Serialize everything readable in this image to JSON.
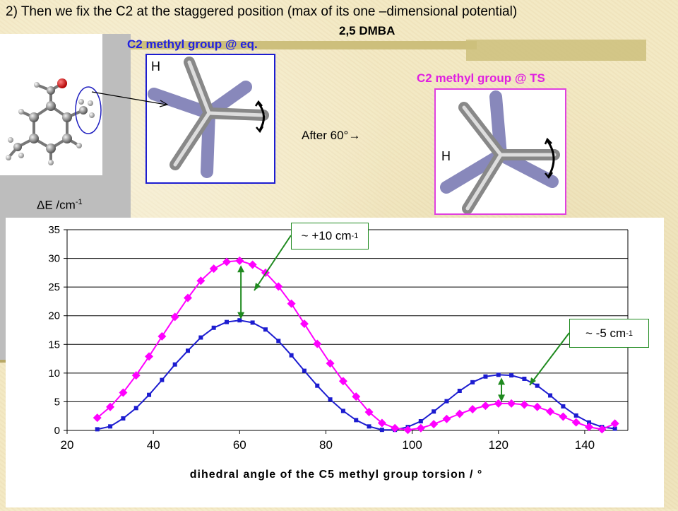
{
  "slide": {
    "title": "2) Then we fix the C2 at the staggered position (max of its one –dimensional potential)",
    "molecule": "2,5 DMBA",
    "eq_label": "C2 methyl group @ eq.",
    "ts_label": "C2 methyl group @ TS",
    "h_label": "H",
    "after_label": "After 60°→",
    "delta_e_label": "ΔE /cm",
    "delta_e_sup": "-1",
    "callout_top": "~ +10 cm",
    "callout_top_sup": "-1",
    "callout_bottom": "~ -5 cm",
    "callout_bottom_sup": "-1",
    "colors": {
      "eq": "#1c1cd0",
      "ts": "#ff00ff",
      "accent": "#1f8a1f",
      "background": "#f3e8c2"
    }
  },
  "chart_data": {
    "type": "line",
    "title": "",
    "xlabel": "dihedral angle of the C5 methyl group torsion / °",
    "ylabel": "ΔE /cm-1",
    "xlim": [
      20,
      150
    ],
    "ylim": [
      0,
      35
    ],
    "xticks": [
      20,
      40,
      60,
      80,
      100,
      120,
      140
    ],
    "yticks": [
      0,
      5,
      10,
      15,
      20,
      25,
      30,
      35
    ],
    "grid": "horizontal",
    "series": [
      {
        "color": "#1c1cd0",
        "marker": "square",
        "x": [
          27,
          30,
          33,
          36,
          39,
          42,
          45,
          48,
          51,
          54,
          57,
          60,
          63,
          66,
          69,
          72,
          75,
          78,
          81,
          84,
          87,
          90,
          93,
          96,
          99,
          102,
          105,
          108,
          111,
          114,
          117,
          120,
          123,
          126,
          129,
          132,
          135,
          138,
          141,
          144,
          147
        ],
        "y": [
          0.2,
          0.7,
          2.1,
          3.9,
          6.2,
          8.8,
          11.5,
          13.9,
          16.2,
          17.9,
          18.9,
          19.2,
          18.8,
          17.6,
          15.6,
          13.1,
          10.4,
          7.8,
          5.4,
          3.4,
          1.8,
          0.7,
          0.1,
          0.1,
          0.6,
          1.6,
          3.3,
          5.1,
          6.9,
          8.4,
          9.4,
          9.7,
          9.6,
          9.0,
          7.8,
          6.1,
          4.2,
          2.6,
          1.4,
          0.6,
          0.3
        ]
      },
      {
        "color": "#ff00ff",
        "marker": "diamond",
        "x": [
          27,
          30,
          33,
          36,
          39,
          42,
          45,
          48,
          51,
          54,
          57,
          60,
          63,
          66,
          69,
          72,
          75,
          78,
          81,
          84,
          87,
          90,
          93,
          96,
          99,
          102,
          105,
          108,
          111,
          114,
          117,
          120,
          123,
          126,
          129,
          132,
          135,
          138,
          141,
          144,
          147
        ],
        "y": [
          2.2,
          4.1,
          6.6,
          9.6,
          12.9,
          16.4,
          19.8,
          23.1,
          26.1,
          28.2,
          29.4,
          29.6,
          28.9,
          27.5,
          25.1,
          22.1,
          18.6,
          15.1,
          11.7,
          8.6,
          5.9,
          3.2,
          1.3,
          0.4,
          0.1,
          0.4,
          1.1,
          2.0,
          2.9,
          3.7,
          4.3,
          4.7,
          4.7,
          4.5,
          4.1,
          3.3,
          2.4,
          1.4,
          0.6,
          0.2,
          1.2
        ]
      }
    ]
  }
}
